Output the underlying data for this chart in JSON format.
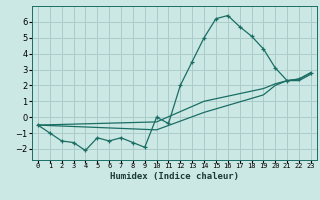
{
  "title": "",
  "xlabel": "Humidex (Indice chaleur)",
  "background_color": "#cce8e4",
  "grid_color": "#aaccca",
  "line_color": "#1a6e64",
  "xlim": [
    -0.5,
    23.5
  ],
  "ylim": [
    -2.7,
    7.0
  ],
  "yticks": [
    -2,
    -1,
    0,
    1,
    2,
    3,
    4,
    5,
    6
  ],
  "xtick_labels": [
    "0",
    "1",
    "2",
    "3",
    "4",
    "5",
    "6",
    "7",
    "8",
    "9",
    "10",
    "11",
    "12",
    "13",
    "14",
    "15",
    "16",
    "17",
    "18",
    "19",
    "20",
    "21",
    "22",
    "23"
  ],
  "series": [
    [
      0,
      -0.5
    ],
    [
      1,
      -1.0
    ],
    [
      2,
      -1.5
    ],
    [
      3,
      -1.6
    ],
    [
      4,
      -2.1
    ],
    [
      5,
      -1.3
    ],
    [
      6,
      -1.5
    ],
    [
      7,
      -1.3
    ],
    [
      8,
      -1.6
    ],
    [
      9,
      -1.9
    ],
    [
      10,
      0.0
    ],
    [
      11,
      -0.4
    ],
    [
      12,
      2.0
    ],
    [
      13,
      3.5
    ],
    [
      14,
      5.0
    ],
    [
      15,
      6.2
    ],
    [
      16,
      6.4
    ],
    [
      17,
      5.7
    ],
    [
      18,
      5.1
    ],
    [
      19,
      4.3
    ],
    [
      20,
      3.1
    ],
    [
      21,
      2.3
    ],
    [
      22,
      2.4
    ],
    [
      23,
      2.8
    ]
  ],
  "line2": [
    [
      0,
      -0.5
    ],
    [
      10,
      -0.3
    ],
    [
      14,
      1.0
    ],
    [
      19,
      1.8
    ],
    [
      20,
      2.1
    ],
    [
      21,
      2.3
    ],
    [
      22,
      2.4
    ],
    [
      23,
      2.8
    ]
  ],
  "line3": [
    [
      0,
      -0.5
    ],
    [
      10,
      -0.8
    ],
    [
      14,
      0.3
    ],
    [
      19,
      1.4
    ],
    [
      20,
      2.0
    ],
    [
      21,
      2.3
    ],
    [
      22,
      2.3
    ],
    [
      23,
      2.7
    ]
  ]
}
